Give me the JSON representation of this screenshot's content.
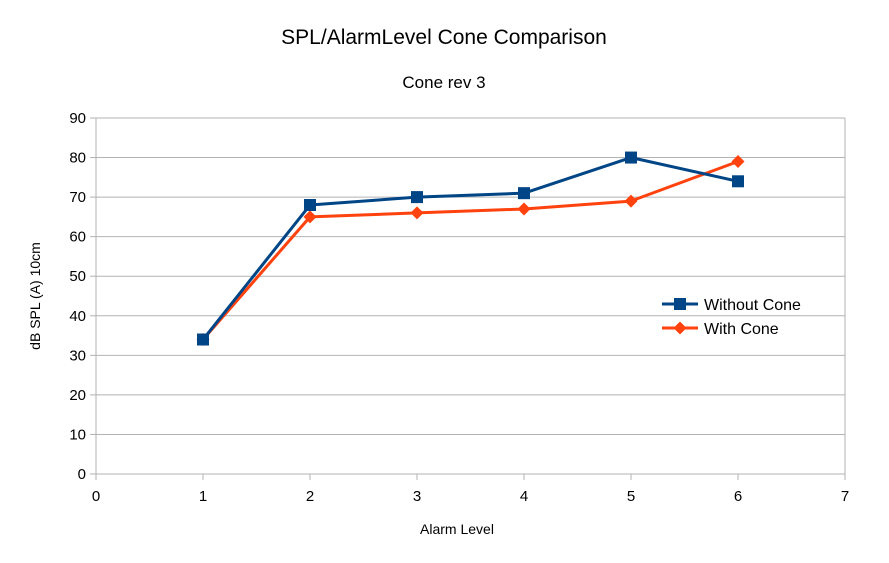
{
  "chart_data": {
    "type": "line",
    "title": "SPL/AlarmLevel Cone Comparison",
    "subtitle": "Cone rev 3",
    "xlabel": "Alarm Level",
    "ylabel": "dB SPL (A) 10cm",
    "xlim": [
      0,
      7
    ],
    "ylim": [
      0,
      90
    ],
    "xticks": [
      0,
      1,
      2,
      3,
      4,
      5,
      6,
      7
    ],
    "yticks": [
      0,
      10,
      20,
      30,
      40,
      50,
      60,
      70,
      80,
      90
    ],
    "grid": "horizontal",
    "legend_position": "right",
    "series": [
      {
        "name": "Without Cone",
        "color": "#004586",
        "marker": "square",
        "x": [
          1,
          2,
          3,
          4,
          5,
          6
        ],
        "y": [
          34,
          68,
          70,
          71,
          80,
          74
        ]
      },
      {
        "name": "With Cone",
        "color": "#ff420e",
        "marker": "diamond",
        "x": [
          1,
          2,
          3,
          4,
          5,
          6
        ],
        "y": [
          34,
          65,
          66,
          67,
          69,
          79
        ]
      }
    ]
  }
}
